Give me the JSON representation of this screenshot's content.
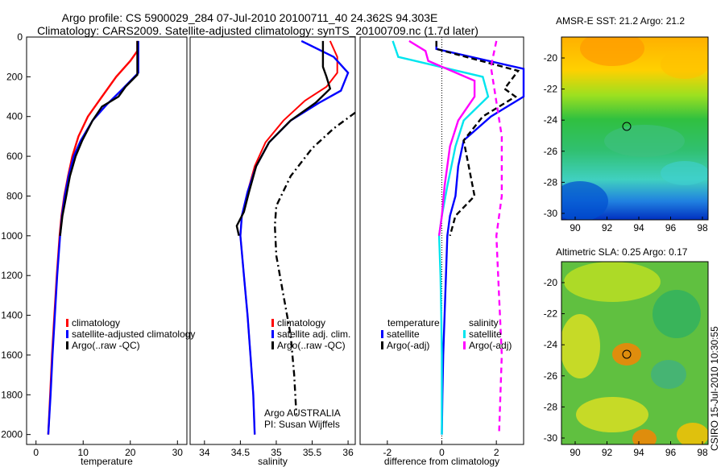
{
  "header": {
    "line1": "Argo profile: CS 5900029_284 07-Jul-2010 20100711_40 24.362S 94.303E",
    "line2": "Climatology: CARS2009. Satellite-adjusted climatology: synTS_20100709.nc (1.7d later)"
  },
  "side_label": "CSIRO 15-Jul-2010 10:30:55",
  "maps": {
    "sst_title": "AMSR-E SST: 21.2 Argo: 21.2",
    "sla_title": "Altimetric SLA: 0.25 Argo: 0.17",
    "yticks": [
      "-20",
      "-22",
      "-24",
      "-26",
      "-28",
      "-30"
    ],
    "xticks": [
      "90",
      "92",
      "94",
      "96",
      "98"
    ]
  },
  "colors": {
    "climatology": "#ff0000",
    "satellite": "#0000ff",
    "argo": "#000000",
    "salinity_sat": "#00e5ee",
    "salinity_argo": "#ff00ff"
  },
  "chart_data": [
    {
      "type": "line",
      "xlabel": "temperature",
      "ylabel": "",
      "xlim": [
        -2,
        32
      ],
      "ylim": [
        2050,
        0
      ],
      "xticks": [
        0,
        10,
        20,
        30
      ],
      "yticks": [
        0,
        200,
        400,
        600,
        800,
        1000,
        1200,
        1400,
        1600,
        1800,
        2000
      ],
      "legend": [
        "climatology",
        "satellite-adjusted climatology",
        "Argo(..raw -QC)"
      ],
      "series": [
        {
          "name": "climatology",
          "color": "#ff0000",
          "points": [
            [
              21.5,
              20
            ],
            [
              21.5,
              70
            ],
            [
              20,
              120
            ],
            [
              17,
              200
            ],
            [
              14,
              300
            ],
            [
              11,
              400
            ],
            [
              9,
              500
            ],
            [
              7.7,
              600
            ],
            [
              6.8,
              700
            ],
            [
              6,
              800
            ],
            [
              5.4,
              900
            ],
            [
              5,
              1000
            ],
            [
              4.4,
              1200
            ],
            [
              3.9,
              1400
            ],
            [
              3.4,
              1600
            ],
            [
              3,
              1800
            ],
            [
              2.6,
              2000
            ]
          ]
        },
        {
          "name": "satellite-adjusted climatology",
          "color": "#0000ff",
          "points": [
            [
              21.7,
              20
            ],
            [
              21.7,
              180
            ],
            [
              18,
              270
            ],
            [
              15,
              340
            ],
            [
              12,
              420
            ],
            [
              9.5,
              520
            ],
            [
              8,
              600
            ],
            [
              6.9,
              700
            ],
            [
              6.1,
              800
            ],
            [
              5.5,
              900
            ],
            [
              5.1,
              1000
            ],
            [
              4.5,
              1200
            ],
            [
              4,
              1400
            ],
            [
              3.5,
              1600
            ],
            [
              3.1,
              1800
            ],
            [
              2.6,
              2000
            ]
          ]
        },
        {
          "name": "Argo(..raw -QC)",
          "color": "#000000",
          "points": [
            [
              21.5,
              20
            ],
            [
              21.5,
              190
            ],
            [
              19,
              250
            ],
            [
              17.5,
              300
            ],
            [
              14,
              350
            ],
            [
              12,
              420
            ],
            [
              9.8,
              520
            ],
            [
              8.4,
              600
            ],
            [
              7.2,
              700
            ],
            [
              6.4,
              800
            ],
            [
              5.6,
              900
            ],
            [
              5.1,
              1000
            ]
          ]
        }
      ]
    },
    {
      "type": "line",
      "xlabel": "salinity",
      "ylabel": "",
      "xlim": [
        33.8,
        36.1
      ],
      "ylim": [
        2050,
        0
      ],
      "xticks": [
        34,
        34.5,
        35,
        35.5,
        36
      ],
      "legend": [
        "climatology",
        "satellite adj. clim.",
        "Argo(..raw -QC)"
      ],
      "annotation": [
        "Argo AUSTRALIA",
        "PI: Susan Wijffels"
      ],
      "series": [
        {
          "name": "climatology",
          "color": "#ff0000",
          "points": [
            [
              35.75,
              20
            ],
            [
              35.85,
              100
            ],
            [
              35.85,
              180
            ],
            [
              35.7,
              250
            ],
            [
              35.4,
              320
            ],
            [
              35.1,
              420
            ],
            [
              34.85,
              530
            ],
            [
              34.7,
              650
            ],
            [
              34.6,
              780
            ],
            [
              34.52,
              900
            ],
            [
              34.5,
              1000
            ],
            [
              34.55,
              1200
            ],
            [
              34.6,
              1400
            ],
            [
              34.64,
              1600
            ],
            [
              34.68,
              1800
            ],
            [
              34.7,
              2000
            ]
          ]
        },
        {
          "name": "satellite adj. clim.",
          "color": "#0000ff",
          "points": [
            [
              35.35,
              20
            ],
            [
              35.8,
              100
            ],
            [
              36.0,
              180
            ],
            [
              35.9,
              270
            ],
            [
              35.6,
              330
            ],
            [
              35.2,
              420
            ],
            [
              34.9,
              530
            ],
            [
              34.72,
              650
            ],
            [
              34.6,
              780
            ],
            [
              34.52,
              900
            ],
            [
              34.5,
              1000
            ],
            [
              34.55,
              1200
            ],
            [
              34.6,
              1400
            ],
            [
              34.64,
              1600
            ],
            [
              34.68,
              1800
            ],
            [
              34.7,
              2000
            ]
          ]
        },
        {
          "name": "Argo(..raw -QC)",
          "color": "#000000",
          "points": [
            [
              35.65,
              20
            ],
            [
              35.65,
              150
            ],
            [
              35.7,
              200
            ],
            [
              35.75,
              260
            ],
            [
              35.55,
              330
            ],
            [
              35.2,
              420
            ],
            [
              34.9,
              530
            ],
            [
              34.72,
              650
            ],
            [
              34.62,
              780
            ],
            [
              34.55,
              880
            ],
            [
              34.45,
              950
            ],
            [
              34.48,
              1000
            ]
          ]
        },
        {
          "name": "Argo(..raw -QC) dash-dot",
          "color": "#000000",
          "points": [
            [
              36.1,
              380
            ],
            [
              35.8,
              460
            ],
            [
              35.5,
              560
            ],
            [
              35.2,
              700
            ],
            [
              35.0,
              850
            ],
            [
              34.98,
              950
            ],
            [
              35.0,
              1100
            ],
            [
              35.1,
              1300
            ],
            [
              35.2,
              1500
            ],
            [
              35.25,
              1700
            ],
            [
              35.28,
              1900
            ]
          ]
        }
      ]
    },
    {
      "type": "line",
      "xlabel": "difference from climatology",
      "ylabel": "",
      "xlim": [
        -3,
        3
      ],
      "ylim": [
        2050,
        0
      ],
      "xticks": [
        -2,
        0,
        2
      ],
      "legend": [
        "temperature",
        "satellite",
        "Argo(-adj)",
        "salinity",
        "satellite",
        "Argo(-adj)"
      ],
      "series": [
        {
          "name": "temperature satellite",
          "color": "#0000ff",
          "points": [
            [
              -0.2,
              20
            ],
            [
              -0.2,
              60
            ],
            [
              3,
              160
            ],
            [
              3,
              300
            ],
            [
              1.8,
              400
            ],
            [
              0.8,
              520
            ],
            [
              0.6,
              650
            ],
            [
              0.5,
              800
            ],
            [
              0.3,
              900
            ],
            [
              0.2,
              1000
            ],
            [
              0.15,
              1200
            ],
            [
              0.1,
              1400
            ],
            [
              0.05,
              1600
            ],
            [
              0.02,
              1800
            ],
            [
              0,
              2000
            ]
          ]
        },
        {
          "name": "temperature Argo(-adj)",
          "color": "#000000",
          "points": [
            [
              -0.2,
              20
            ],
            [
              -0.2,
              60
            ],
            [
              2.8,
              170
            ],
            [
              2.3,
              260
            ],
            [
              2.7,
              300
            ],
            [
              1.5,
              400
            ],
            [
              0.8,
              520
            ],
            [
              1.2,
              800
            ],
            [
              0.5,
              900
            ],
            [
              0.3,
              1000
            ]
          ]
        },
        {
          "name": "salinity satellite",
          "color": "#00e5ee",
          "points": [
            [
              -1.8,
              20
            ],
            [
              -1.6,
              100
            ],
            [
              1.5,
              200
            ],
            [
              1.7,
              300
            ],
            [
              0.8,
              420
            ],
            [
              0.5,
              550
            ],
            [
              0.2,
              750
            ],
            [
              0,
              900
            ],
            [
              -0.1,
              1000
            ],
            [
              -0.05,
              1200
            ],
            [
              -0.02,
              1400
            ],
            [
              0,
              1600
            ],
            [
              0,
              1800
            ],
            [
              0,
              2000
            ]
          ]
        },
        {
          "name": "salinity Argo(-adj)",
          "color": "#ff00ff",
          "points": [
            [
              -1.2,
              20
            ],
            [
              -0.6,
              70
            ],
            [
              -0.5,
              120
            ],
            [
              1.2,
              220
            ],
            [
              1.2,
              300
            ],
            [
              0.6,
              420
            ],
            [
              0.3,
              550
            ],
            [
              0.1,
              750
            ],
            [
              0,
              900
            ],
            [
              -0.1,
              1000
            ]
          ]
        },
        {
          "name": "salinity Argo dashed",
          "color": "#ff00ff",
          "points": [
            [
              2,
              20
            ],
            [
              1.8,
              150
            ],
            [
              2.2,
              500
            ],
            [
              2.2,
              800
            ],
            [
              2.0,
              1000
            ],
            [
              2.1,
              1300
            ],
            [
              2.2,
              1600
            ],
            [
              2.1,
              2000
            ]
          ]
        }
      ]
    }
  ]
}
